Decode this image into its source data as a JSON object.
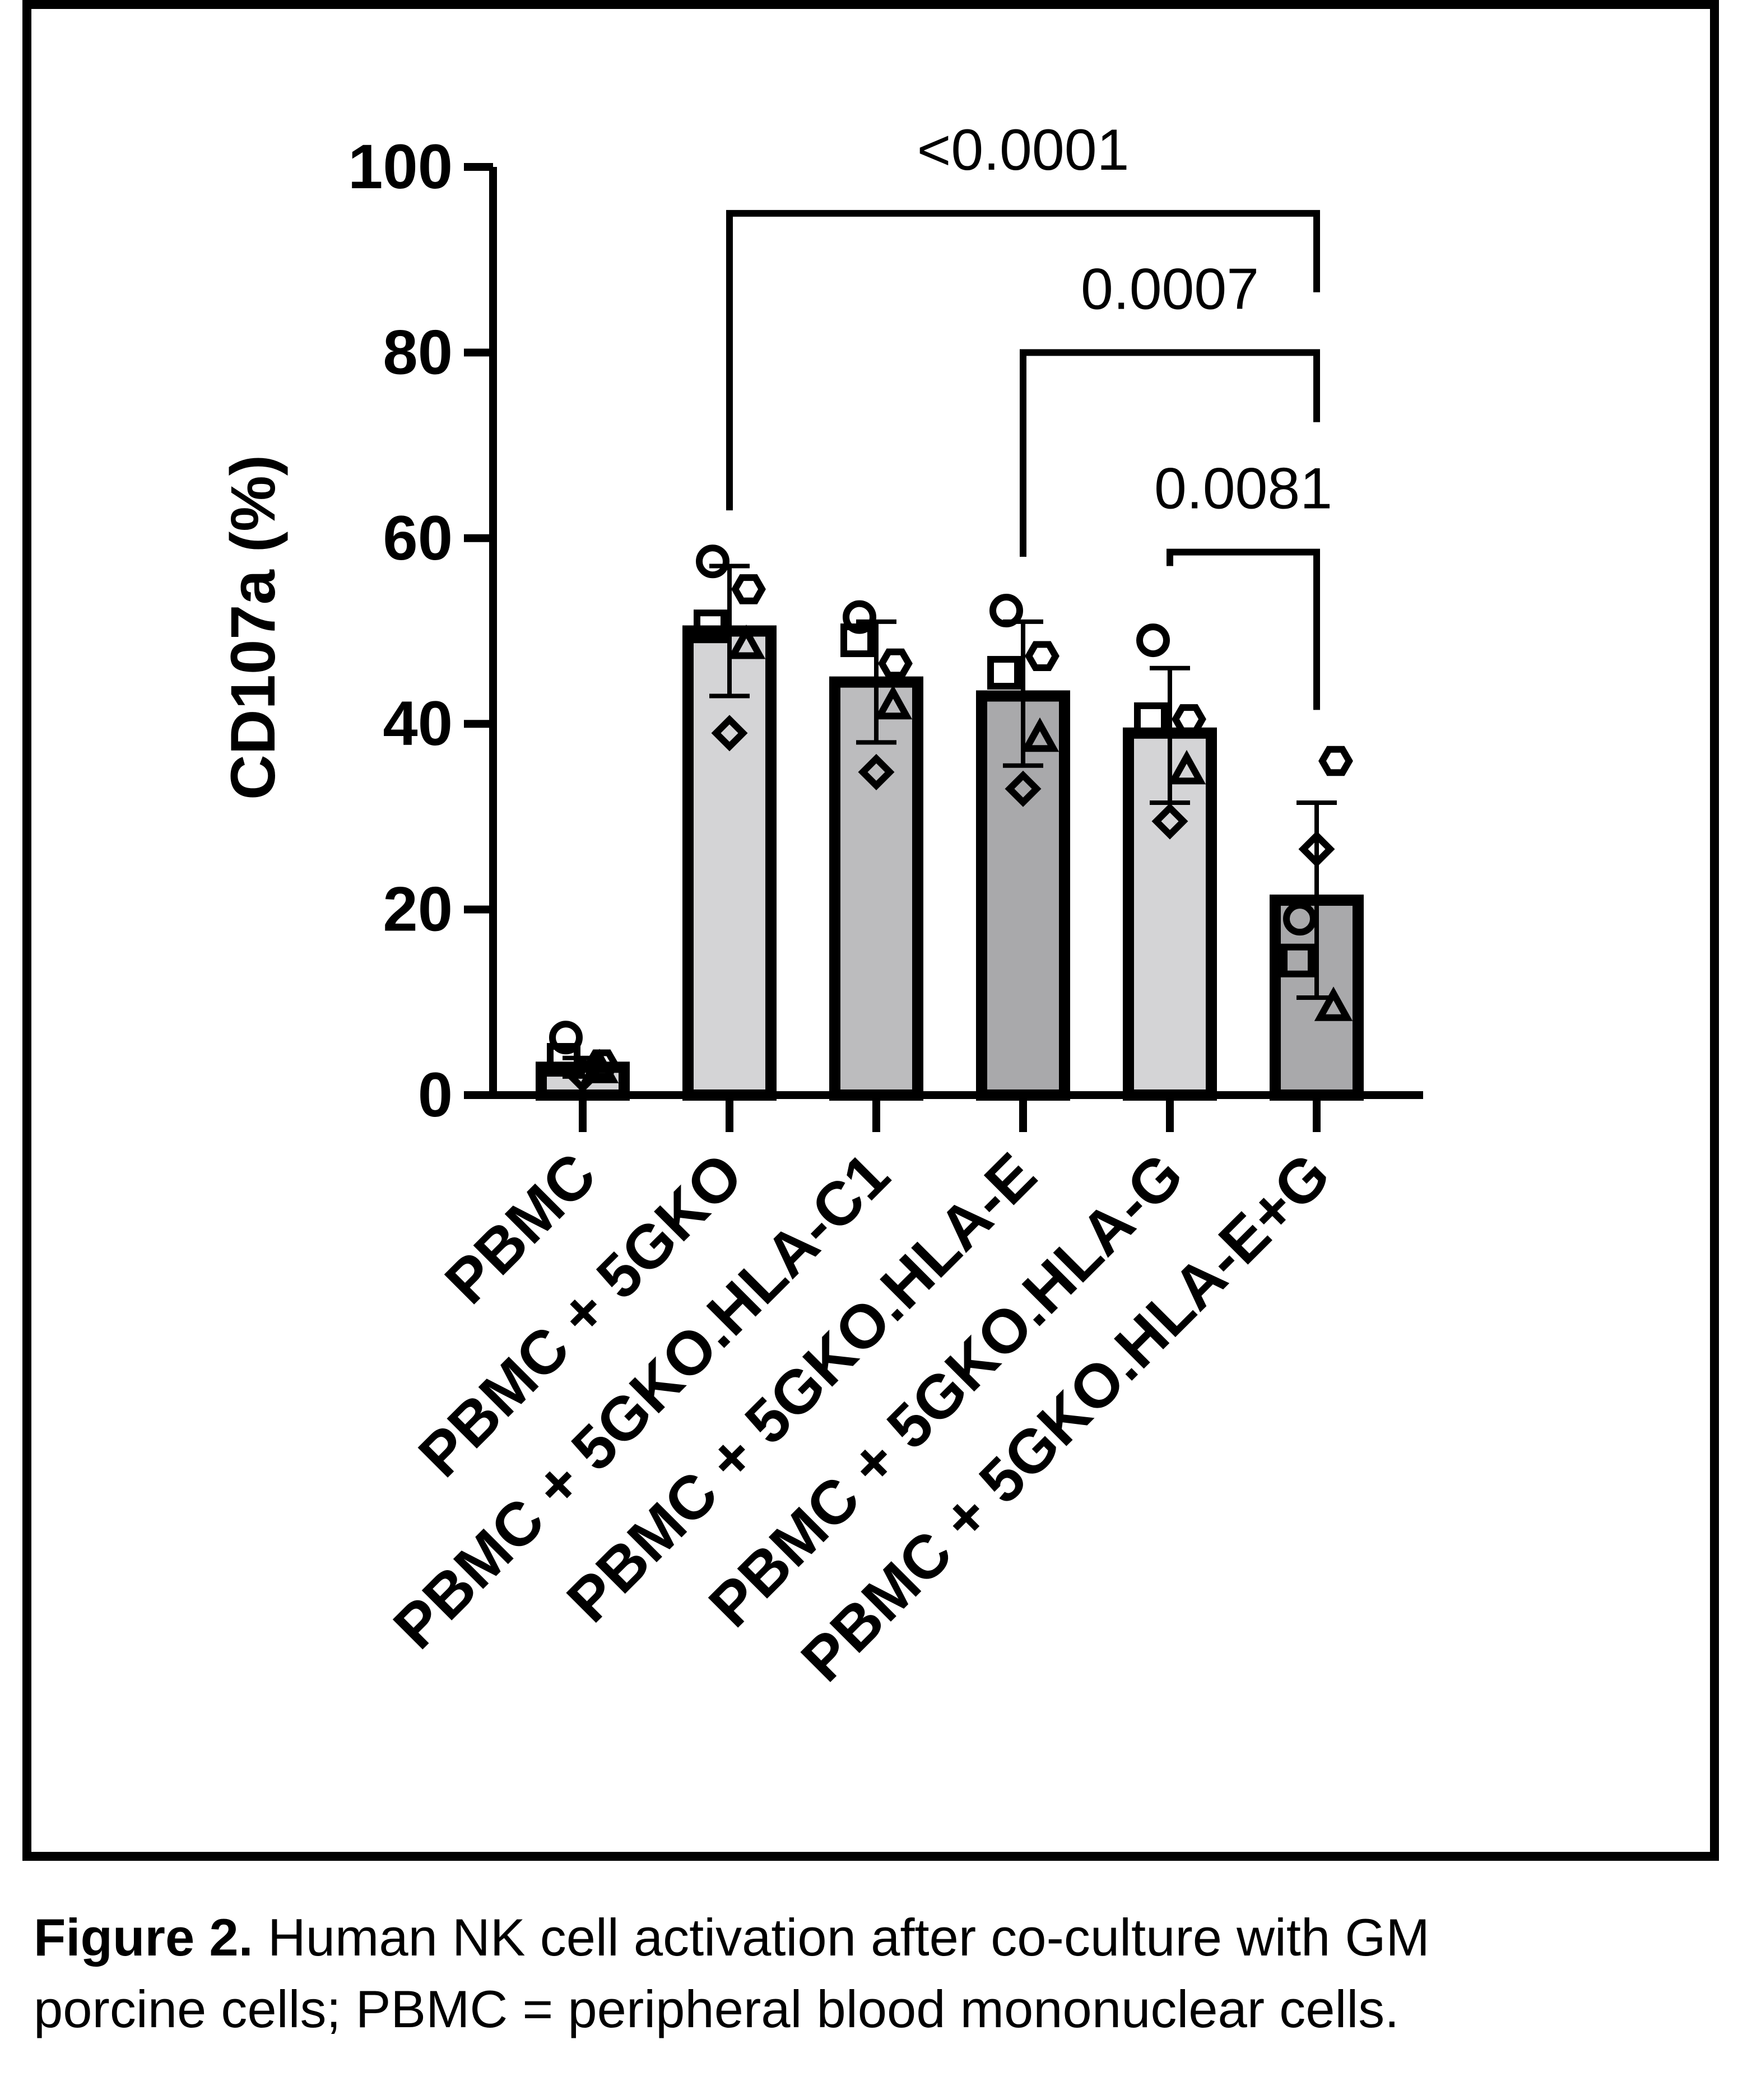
{
  "chart_data": {
    "type": "bar",
    "ylabel": "CD107a (%)",
    "ylim": [
      0,
      100
    ],
    "yticks": [
      "0",
      "20",
      "40",
      "60",
      "80",
      "100"
    ],
    "categories": [
      "PBMC",
      "PBMC + 5GKO",
      "PBMC + 5GKO.HLA-C1",
      "PBMC + 5GKO.HLA-E",
      "PBMC + 5GKO.HLA-G",
      "PBMC + 5GKO.HLA-E+G"
    ],
    "means": [
      3,
      50,
      44.5,
      43,
      39,
      21
    ],
    "error": [
      {
        "low": 2,
        "high": 4
      },
      {
        "low": 43,
        "high": 57
      },
      {
        "low": 38,
        "high": 51
      },
      {
        "low": 35.5,
        "high": 51
      },
      {
        "low": 31.5,
        "high": 46
      },
      {
        "low": 10.5,
        "high": 31.5
      }
    ],
    "bar_colors": [
      "#d4d4d6",
      "#d4d4d6",
      "#bcbcbe",
      "#a9a9ab",
      "#d4d4d6",
      "#a9a9ab"
    ],
    "points": [
      [
        {
          "marker": "circle",
          "value": 6.2
        },
        {
          "marker": "square",
          "value": 3.8
        },
        {
          "marker": "hexagon",
          "value": 3.3
        },
        {
          "marker": "triangle",
          "value": 2.8
        },
        {
          "marker": "diamond",
          "value": 2.2
        }
      ],
      [
        {
          "marker": "circle",
          "value": 57.5
        },
        {
          "marker": "hexagon",
          "value": 54.5
        },
        {
          "marker": "square",
          "value": 50.5
        },
        {
          "marker": "triangle",
          "value": 48.5
        },
        {
          "marker": "diamond",
          "value": 39
        }
      ],
      [
        {
          "marker": "circle",
          "value": 51.5
        },
        {
          "marker": "square",
          "value": 49
        },
        {
          "marker": "hexagon",
          "value": 46.5
        },
        {
          "marker": "triangle",
          "value": 42
        },
        {
          "marker": "diamond",
          "value": 34.8
        }
      ],
      [
        {
          "marker": "circle",
          "value": 52.2
        },
        {
          "marker": "hexagon",
          "value": 47.3
        },
        {
          "marker": "square",
          "value": 45.5
        },
        {
          "marker": "triangle",
          "value": 38.5
        },
        {
          "marker": "diamond",
          "value": 33
        }
      ],
      [
        {
          "marker": "circle",
          "value": 49
        },
        {
          "marker": "hexagon",
          "value": 40.5
        },
        {
          "marker": "square",
          "value": 40.5
        },
        {
          "marker": "triangle",
          "value": 35
        },
        {
          "marker": "diamond",
          "value": 29.5
        }
      ],
      [
        {
          "marker": "hexagon",
          "value": 36
        },
        {
          "marker": "diamond",
          "value": 26.5
        },
        {
          "marker": "circle",
          "value": 19
        },
        {
          "marker": "square",
          "value": 14.5
        },
        {
          "marker": "triangle",
          "value": 9.5
        }
      ]
    ],
    "comparisons": [
      {
        "from": 1,
        "to": 5,
        "label": "<0.0001"
      },
      {
        "from": 3,
        "to": 5,
        "label": "0.0007"
      },
      {
        "from": 4,
        "to": 5,
        "label": "0.0081"
      }
    ]
  },
  "caption": {
    "label": "Figure 2.",
    "line1": " Human NK cell activation after co-culture with GM",
    "line2": "porcine cells; PBMC = peripheral blood mononuclear cells."
  }
}
